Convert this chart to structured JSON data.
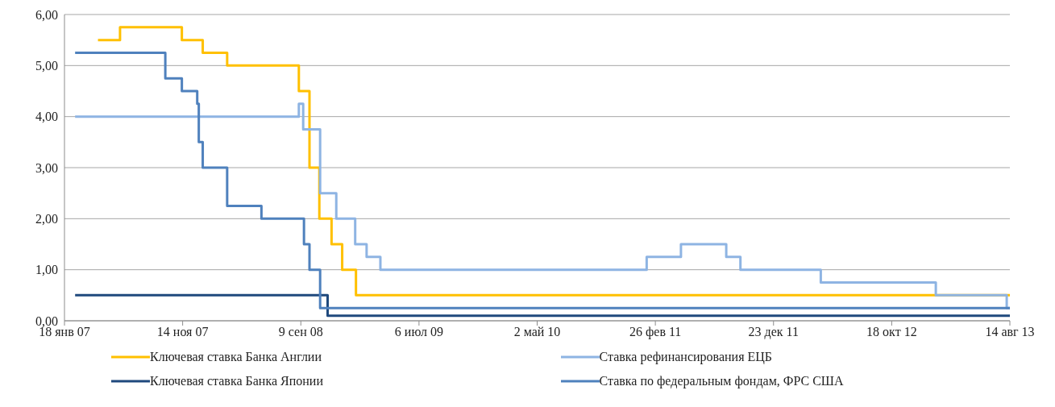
{
  "chart_data": {
    "type": "step",
    "xlim": [
      "2007-01-18",
      "2013-08-14"
    ],
    "xticks": [
      {
        "value": "2007-01-18",
        "label": "18 янв 07"
      },
      {
        "value": "2007-11-14",
        "label": "14 ноя 07"
      },
      {
        "value": "2008-09-09",
        "label": "9 сен 08"
      },
      {
        "value": "2009-07-06",
        "label": "6 июл 09"
      },
      {
        "value": "2010-05-02",
        "label": "2 май 10"
      },
      {
        "value": "2011-02-26",
        "label": "26 фев 11"
      },
      {
        "value": "2011-12-23",
        "label": "23 дек 11"
      },
      {
        "value": "2012-10-18",
        "label": "18 окт 12"
      },
      {
        "value": "2013-08-14",
        "label": "14 авг 13"
      }
    ],
    "ylim": [
      0,
      6
    ],
    "yticks": [
      {
        "value": 0,
        "label": "0,00"
      },
      {
        "value": 1,
        "label": "1,00"
      },
      {
        "value": 2,
        "label": "2,00"
      },
      {
        "value": 3,
        "label": "3,00"
      },
      {
        "value": 4,
        "label": "4,00"
      },
      {
        "value": 5,
        "label": "5,00"
      },
      {
        "value": 6,
        "label": "6,00"
      }
    ],
    "grid": "y",
    "legend": "bottom",
    "marker": "none",
    "line_style": "solid",
    "series": [
      {
        "name": "Ключевая ставка Банка Англии",
        "color": "#ffc000",
        "x": [
          "2007-04-13",
          "2007-06-08",
          "2007-11-12",
          "2008-01-04",
          "2008-03-06",
          "2008-09-04",
          "2008-10-01",
          "2008-10-26",
          "2008-11-26",
          "2008-12-23",
          "2009-01-27",
          "2013-08-14"
        ],
        "values": [
          5.5,
          5.75,
          5.5,
          5.25,
          5.0,
          4.5,
          3.0,
          2.0,
          1.5,
          1.0,
          0.5,
          0.5
        ]
      },
      {
        "name": "Ставка рефинансирования ЕЦБ",
        "color": "#8eb4e3",
        "x": [
          "2007-02-14",
          "2008-09-04",
          "2008-09-15",
          "2008-10-28",
          "2008-12-08",
          "2009-01-25",
          "2009-02-23",
          "2009-03-30",
          "2011-02-04",
          "2011-05-02",
          "2011-08-25",
          "2011-09-30",
          "2012-04-21",
          "2013-02-07",
          "2013-08-06",
          "2013-08-14"
        ],
        "values": [
          4.0,
          4.25,
          3.75,
          2.5,
          2.0,
          1.5,
          1.25,
          1.0,
          1.25,
          1.5,
          1.25,
          1.0,
          0.75,
          0.5,
          0.25,
          0.25
        ]
      },
      {
        "name": "Ключевая ставка Банка Японии",
        "color": "#1f497d",
        "x": [
          "2007-02-14",
          "2008-11-16",
          "2013-08-14"
        ],
        "values": [
          0.5,
          0.1,
          0.1
        ]
      },
      {
        "name": "Ставка по федеральным фондам, ФРС США",
        "color": "#4f81bd",
        "x": [
          "2007-02-14",
          "2007-10-01",
          "2007-11-12",
          "2007-12-21",
          "2007-12-25",
          "2008-01-04",
          "2008-03-06",
          "2008-06-01",
          "2008-09-17",
          "2008-10-01",
          "2008-10-28",
          "2013-08-14"
        ],
        "values": [
          5.25,
          4.75,
          4.5,
          4.25,
          3.5,
          3.0,
          2.25,
          2.0,
          1.5,
          1.0,
          0.25,
          0.25
        ]
      }
    ]
  }
}
